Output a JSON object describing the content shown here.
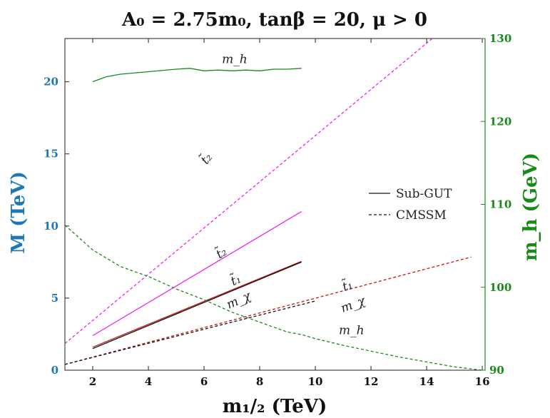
{
  "chart_data": {
    "type": "line",
    "title": "A₀ = 2.75m₀,  tanβ = 20,  μ > 0",
    "xlabel": "m₁/₂ (TeV)",
    "ylabel_left": "M (TeV)",
    "ylabel_right": "m_h (GeV)",
    "xlim": [
      1,
      16.1
    ],
    "ylim_left": [
      0,
      23
    ],
    "ylim_right": [
      90,
      130
    ],
    "xticks": [
      2,
      4,
      6,
      8,
      10,
      12,
      14,
      16
    ],
    "yticks_left": [
      0,
      5,
      10,
      15,
      20
    ],
    "yticks_right": [
      90,
      100,
      110,
      120,
      130
    ],
    "grid": false,
    "legend_position": "right",
    "legend": [
      {
        "label": "Sub-GUT",
        "dash": "solid"
      },
      {
        "label": "CMSSM",
        "dash": "dashed"
      }
    ],
    "colors": {
      "left_axis": "#1f78b4",
      "right_axis": "#1a8a1a",
      "stop2": "#ee22ee",
      "stop1": "#cc1111",
      "neutralino": "#111111",
      "higgs": "#1a8a1a"
    },
    "series": [
      {
        "axis": "left",
        "color": "#ee22ee",
        "dash": "solid",
        "x": [
          2,
          9.5
        ],
        "y": [
          2.4,
          11
        ]
      },
      {
        "axis": "left",
        "color": "#cc1111",
        "dash": "solid",
        "x": [
          2,
          9.5
        ],
        "y": [
          1.6,
          7.55
        ]
      },
      {
        "axis": "left",
        "color": "#111111",
        "dash": "solid",
        "x": [
          2,
          9.5
        ],
        "y": [
          1.5,
          7.5
        ]
      },
      {
        "axis": "right",
        "color": "#1a8a1a",
        "dash": "solid",
        "x": [
          2,
          2.5,
          3,
          4,
          5,
          5.5,
          6,
          6.5,
          7,
          7.5,
          8,
          8.5,
          9,
          9.5
        ],
        "y": [
          124.8,
          125.4,
          125.7,
          126.0,
          126.3,
          126.4,
          126.1,
          126.2,
          126.1,
          126.2,
          126.1,
          126.3,
          126.3,
          126.4
        ]
      },
      {
        "axis": "left",
        "color": "#ee22ee",
        "dash": "dashed",
        "x": [
          1,
          14.2
        ],
        "y": [
          1.85,
          23
        ]
      },
      {
        "axis": "left",
        "color": "#cc1111",
        "dash": "dashed",
        "x": [
          1,
          15.6
        ],
        "y": [
          0.4,
          7.85
        ]
      },
      {
        "axis": "left",
        "color": "#111111",
        "dash": "dashed",
        "x": [
          1,
          10
        ],
        "y": [
          0.4,
          4.8
        ]
      },
      {
        "axis": "right",
        "color": "#1a8a1a",
        "dash": "dashed",
        "x": [
          1,
          1.5,
          2,
          2.5,
          3,
          4,
          5,
          6,
          7,
          8,
          9,
          9.5,
          10,
          11,
          12,
          13,
          14,
          15,
          16
        ],
        "y": [
          107.5,
          106,
          104.5,
          103.5,
          102.5,
          101.3,
          99.8,
          98.5,
          97,
          95.8,
          94.6,
          94.3,
          93.8,
          93.0,
          92.3,
          91.6,
          91.0,
          90.4,
          90
        ]
      }
    ],
    "annotations": [
      {
        "text": "m_h",
        "x": 7.1,
        "y": 21.3,
        "rotate": 0
      },
      {
        "text": "t̃₂",
        "x": 6.2,
        "y": 14.5,
        "rotate": -52
      },
      {
        "text": "t̃₂",
        "x": 6.7,
        "y": 7.9,
        "rotate": -33
      },
      {
        "text": "t̃₁",
        "x": 7.2,
        "y": 6.0,
        "rotate": -24
      },
      {
        "text": "m_χ",
        "x": 7.3,
        "y": 4.6,
        "rotate": -24
      },
      {
        "text": "t̃₁",
        "x": 11.2,
        "y": 5.6,
        "rotate": -20
      },
      {
        "text": "m_χ",
        "x": 11.4,
        "y": 4.3,
        "rotate": -20
      },
      {
        "text": "m_h",
        "x": 11.3,
        "y": 2.5,
        "rotate": 0
      }
    ]
  }
}
